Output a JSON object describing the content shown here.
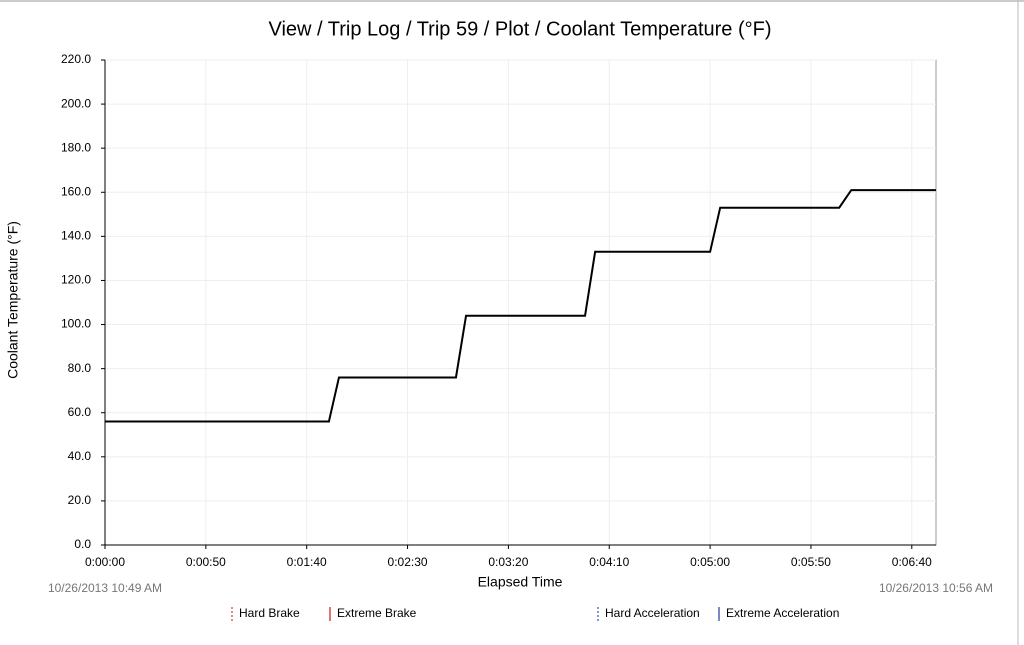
{
  "chart_data": {
    "type": "line",
    "title": "View / Trip Log / Trip 59 / Plot / Coolant Temperature (°F)",
    "x_label": "Elapsed Time",
    "y_label": "Coolant Temperature (°F)",
    "start_time": "10/26/2013 10:49 AM",
    "end_time": "10/26/2013 10:56 AM",
    "x": [
      0,
      111,
      116,
      174,
      179,
      238,
      243,
      300,
      305,
      364,
      370,
      412
    ],
    "series": [
      {
        "color": "#000000",
        "values": [
          56,
          56,
          76,
          76,
          104,
          104,
          133,
          133,
          153,
          153,
          161,
          161
        ]
      }
    ],
    "xlim": [
      0,
      412
    ],
    "xticks": [
      {
        "value": 0,
        "label": "0:00:00"
      },
      {
        "value": 50,
        "label": "0:00:50"
      },
      {
        "value": 100,
        "label": "0:01:40"
      },
      {
        "value": 150,
        "label": "0:02:30"
      },
      {
        "value": 200,
        "label": "0:03:20"
      },
      {
        "value": 250,
        "label": "0:04:10"
      },
      {
        "value": 300,
        "label": "0:05:00"
      },
      {
        "value": 350,
        "label": "0:05:50"
      },
      {
        "value": 400,
        "label": "0:06:40"
      }
    ],
    "ylim": [
      0,
      220
    ],
    "yticks": [
      {
        "value": 0,
        "label": "0.0"
      },
      {
        "value": 20,
        "label": "20.0"
      },
      {
        "value": 40,
        "label": "40.0"
      },
      {
        "value": 60,
        "label": "60.0"
      },
      {
        "value": 80,
        "label": "80.0"
      },
      {
        "value": 100,
        "label": "100.0"
      },
      {
        "value": 120,
        "label": "120.0"
      },
      {
        "value": 140,
        "label": "140.0"
      },
      {
        "value": 160,
        "label": "160.0"
      },
      {
        "value": 180,
        "label": "180.0"
      },
      {
        "value": 200,
        "label": "200.0"
      },
      {
        "value": 220,
        "label": "220.0"
      }
    ],
    "grid": true,
    "legend": [
      {
        "name": "Hard Brake",
        "color": "#e03030",
        "style": "dashed"
      },
      {
        "name": "Extreme Brake",
        "color": "#d01818",
        "style": "solid"
      },
      {
        "name": "Hard Acceleration",
        "color": "#3050c0",
        "style": "dashed"
      },
      {
        "name": "Extreme Acceleration",
        "color": "#2038a0",
        "style": "solid"
      }
    ]
  }
}
